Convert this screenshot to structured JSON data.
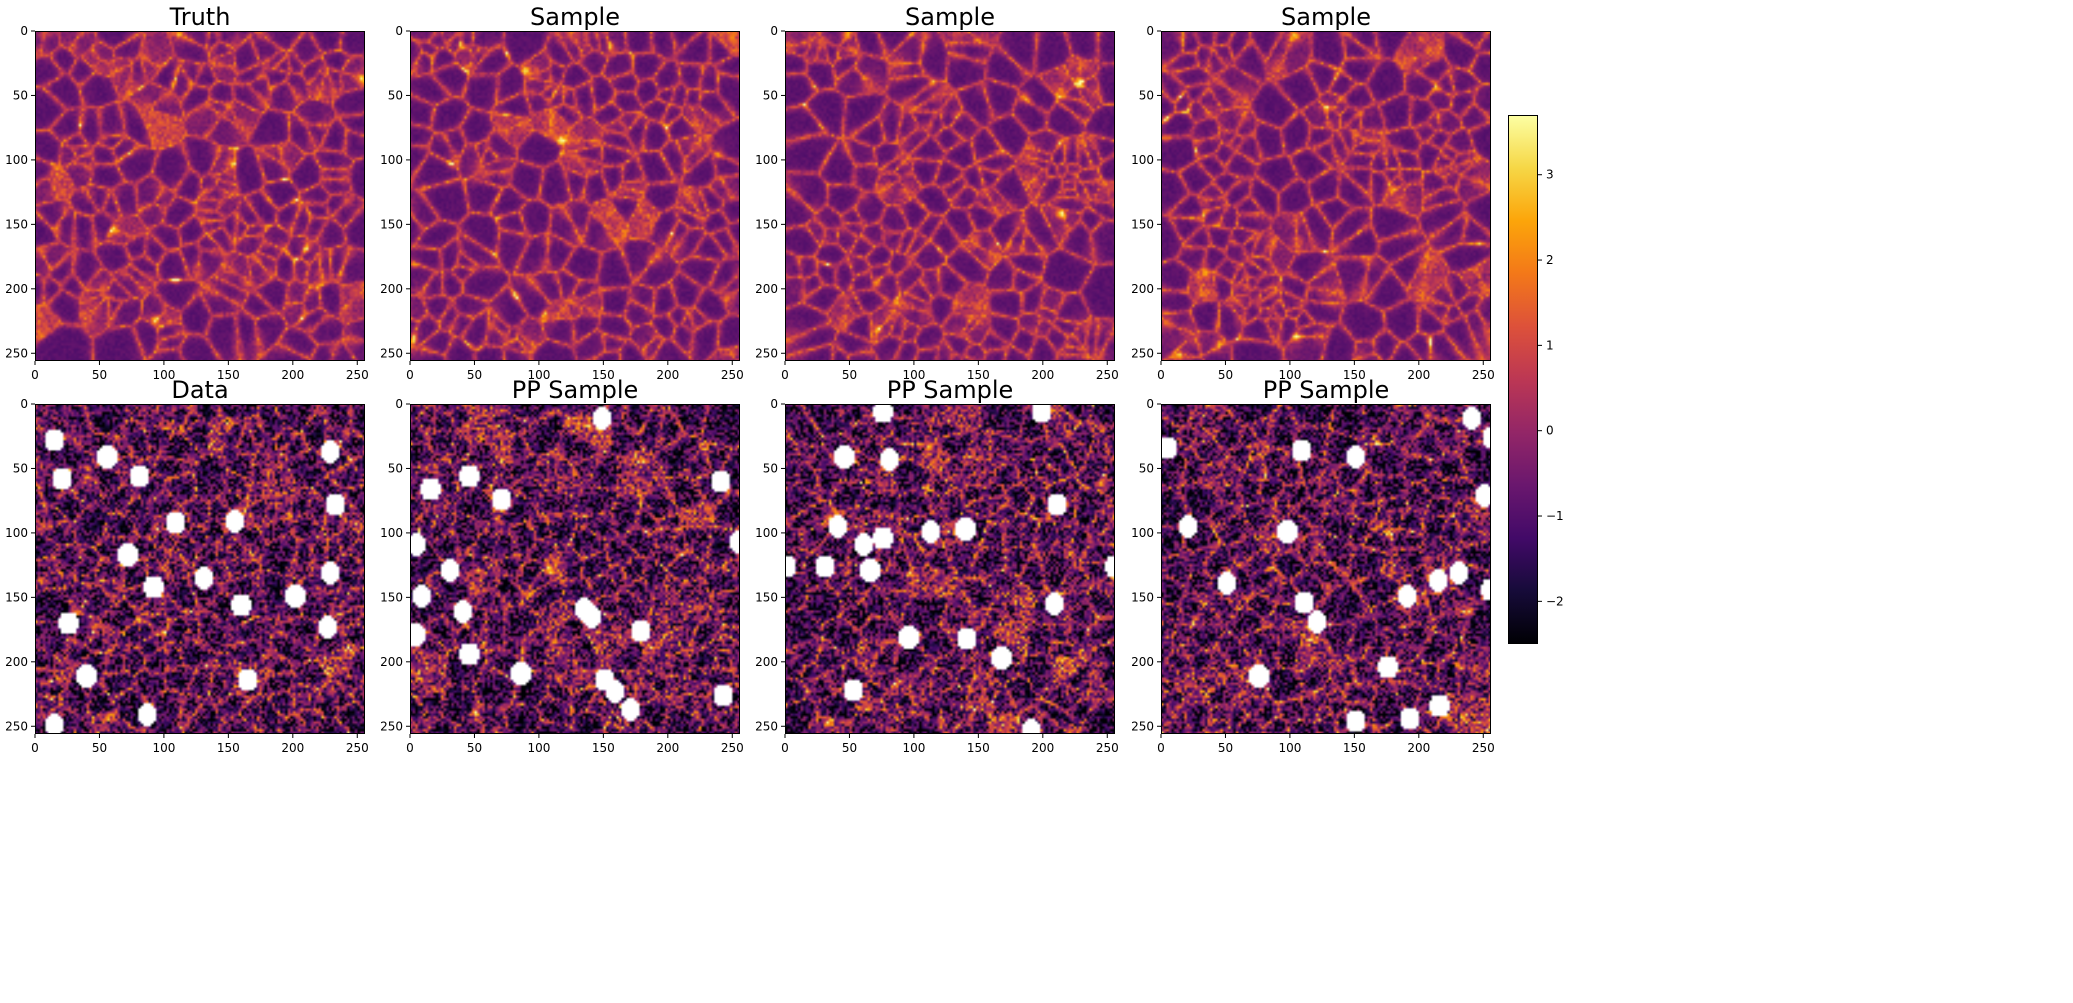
{
  "chart_data": {
    "type": "heatmap",
    "colormap": "inferno",
    "colorbar": {
      "range": [
        -2.5,
        3.7
      ],
      "ticks": [
        -2,
        -1,
        0,
        1,
        2,
        3
      ],
      "tick_labels": [
        "−2",
        "−1",
        "0",
        "1",
        "2",
        "3"
      ]
    },
    "grid": false,
    "axes": {
      "xlim": [
        0,
        256
      ],
      "ylim": [
        256,
        0
      ],
      "x_ticks": [
        0,
        50,
        100,
        150,
        200,
        250
      ],
      "y_ticks": [
        0,
        50,
        100,
        150,
        200,
        250
      ]
    },
    "panels": [
      {
        "title": "Truth",
        "kind": "field",
        "mask_centers": []
      },
      {
        "title": "Sample",
        "kind": "field",
        "mask_centers": []
      },
      {
        "title": "Sample",
        "kind": "field",
        "mask_centers": []
      },
      {
        "title": "Sample",
        "kind": "field",
        "mask_centers": []
      },
      {
        "title": "Data",
        "kind": "noisy",
        "mask_centers": [
          [
            14,
            27
          ],
          [
            20,
            57
          ],
          [
            55,
            40
          ],
          [
            80,
            55
          ],
          [
            108,
            91
          ],
          [
            71,
            116
          ],
          [
            91,
            141
          ],
          [
            154,
            90
          ],
          [
            228,
            36
          ],
          [
            130,
            134
          ],
          [
            159,
            155
          ],
          [
            232,
            77
          ],
          [
            201,
            148
          ],
          [
            226,
            172
          ],
          [
            228,
            130
          ],
          [
            25,
            169
          ],
          [
            39,
            210
          ],
          [
            14,
            248
          ],
          [
            86,
            240
          ],
          [
            164,
            213
          ]
        ]
      },
      {
        "title": "PP Sample",
        "kind": "noisy",
        "mask_centers": [
          [
            148,
            10
          ],
          [
            45,
            55
          ],
          [
            15,
            65
          ],
          [
            70,
            73
          ],
          [
            4,
            108
          ],
          [
            30,
            128
          ],
          [
            8,
            148
          ],
          [
            40,
            160
          ],
          [
            3,
            178
          ],
          [
            45,
            193
          ],
          [
            85,
            208
          ],
          [
            134,
            158
          ],
          [
            140,
            164
          ],
          [
            178,
            175
          ],
          [
            150,
            213
          ],
          [
            158,
            222
          ],
          [
            170,
            236
          ],
          [
            240,
            59
          ],
          [
            254,
            106
          ],
          [
            242,
            225
          ]
        ]
      },
      {
        "title": "PP Sample",
        "kind": "noisy",
        "mask_centers": [
          [
            75,
            5
          ],
          [
            45,
            40
          ],
          [
            80,
            42
          ],
          [
            198,
            5
          ],
          [
            210,
            77
          ],
          [
            40,
            94
          ],
          [
            60,
            108
          ],
          [
            75,
            103
          ],
          [
            112,
            98
          ],
          [
            139,
            96
          ],
          [
            30,
            125
          ],
          [
            65,
            128
          ],
          [
            0,
            125
          ],
          [
            95,
            180
          ],
          [
            140,
            181
          ],
          [
            208,
            154
          ],
          [
            167,
            196
          ],
          [
            52,
            221
          ],
          [
            190,
            252
          ],
          [
            255,
            125
          ]
        ]
      },
      {
        "title": "PP Sample",
        "kind": "noisy",
        "mask_centers": [
          [
            240,
            10
          ],
          [
            256,
            25
          ],
          [
            108,
            35
          ],
          [
            150,
            40
          ],
          [
            250,
            70
          ],
          [
            20,
            94
          ],
          [
            97,
            98
          ],
          [
            50,
            138
          ],
          [
            255,
            143
          ],
          [
            110,
            153
          ],
          [
            120,
            168
          ],
          [
            190,
            148
          ],
          [
            214,
            136
          ],
          [
            230,
            130
          ],
          [
            175,
            203
          ],
          [
            75,
            210
          ],
          [
            215,
            233
          ],
          [
            150,
            245
          ],
          [
            192,
            243
          ],
          [
            4,
            33
          ]
        ]
      }
    ]
  }
}
